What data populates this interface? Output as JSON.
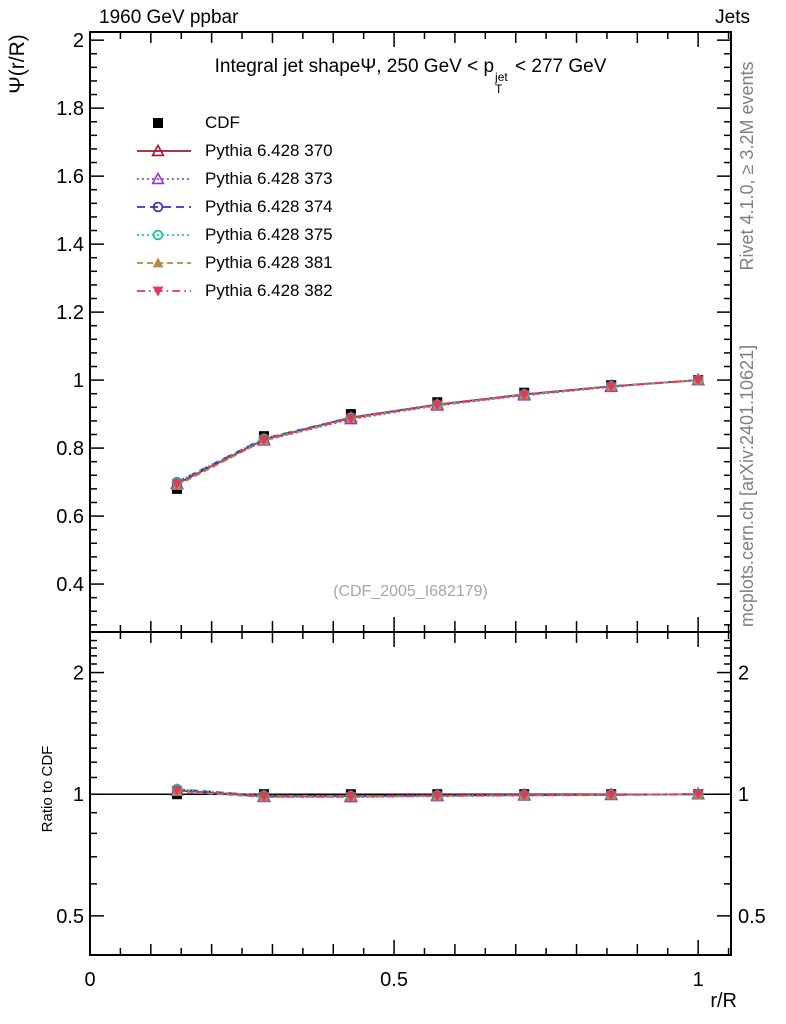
{
  "header": {
    "left": "1960 GeV ppbar",
    "right": "Jets"
  },
  "title": {
    "text1": "Integral jet shape",
    "psi": "Ψ",
    "text2": ", 250 GeV < p",
    "sup": "jet",
    "sub": "T",
    "text3": " < 277 GeV"
  },
  "watermark": "(CDF_2005_I682179)",
  "side_notes": {
    "top": "Rivet 4.1.0, ≥ 3.2M events",
    "bottom": "mcplots.cern.ch [arXiv:2401.10621]",
    "color": "#808080"
  },
  "axes": {
    "main_ylabel": "Ψ(r/R)",
    "ratio_ylabel": "Ratio to CDF",
    "xlabel": "r/R"
  },
  "chart_data": {
    "type": "line",
    "title": "Integral jet shape Ψ, 250 GeV < p_T^jet < 277 GeV",
    "xlabel": "r/R",
    "ylabel": "Ψ(r/R)",
    "ratio_ylabel": "Ratio to CDF",
    "legend_position": "top-left-inside",
    "grid": false,
    "x": [
      0.143,
      0.286,
      0.429,
      0.571,
      0.714,
      0.857,
      1.0
    ],
    "x_axis": {
      "min": 0,
      "max": 1.054,
      "labeled_ticks": [
        0,
        0.5,
        1
      ]
    },
    "main_axis": {
      "scale": "linear",
      "ymin": 0.259,
      "ymax": 2.024,
      "labeled_ticks": [
        0.4,
        0.6,
        0.8,
        1,
        1.2,
        1.4,
        1.6,
        1.8,
        2
      ]
    },
    "ratio_axis": {
      "scale": "log",
      "ymin": 0.4,
      "ymax": 2.52,
      "labeled_ticks": [
        0.5,
        1,
        2
      ],
      "reference_line": 1
    },
    "cdf_error": 0.013,
    "series": [
      {
        "name": "CDF",
        "color": "#000000",
        "marker": "square-filled",
        "line": "none",
        "values": [
          0.68,
          0.835,
          0.9,
          0.935,
          0.963,
          0.985,
          1.0
        ],
        "ratio": [
          1,
          1,
          1,
          1,
          1,
          1,
          1
        ]
      },
      {
        "name": "Pythia 6.428 370",
        "color": "#a01830",
        "marker": "triangle-open-up",
        "line": "solid",
        "values": [
          0.695,
          0.825,
          0.89,
          0.928,
          0.958,
          0.982,
          1.0
        ],
        "ratio": [
          1.022,
          0.988,
          0.989,
          0.993,
          0.995,
          0.997,
          1.0
        ]
      },
      {
        "name": "Pythia 6.428 373",
        "color": "#9933cc",
        "marker": "triangle-open-up",
        "line": "dotted",
        "values": [
          0.694,
          0.822,
          0.885,
          0.925,
          0.955,
          0.98,
          1.0
        ],
        "ratio": [
          1.021,
          0.984,
          0.983,
          0.989,
          0.992,
          0.995,
          1.0
        ]
      },
      {
        "name": "Pythia 6.428 374",
        "color": "#3333cc",
        "marker": "circle-open",
        "line": "dashed",
        "values": [
          0.7,
          0.828,
          0.89,
          0.928,
          0.958,
          0.982,
          1.0
        ],
        "ratio": [
          1.029,
          0.992,
          0.989,
          0.993,
          0.995,
          0.997,
          1.0
        ]
      },
      {
        "name": "Pythia 6.428 375",
        "color": "#00cc99",
        "marker": "circle-open",
        "line": "dotted",
        "values": [
          0.7,
          0.828,
          0.89,
          0.928,
          0.958,
          0.982,
          1.0
        ],
        "ratio": [
          1.029,
          0.992,
          0.989,
          0.993,
          0.995,
          0.997,
          1.0
        ]
      },
      {
        "name": "Pythia 6.428 381",
        "color": "#b5884d",
        "marker": "triangle-filled-up",
        "line": "dashed2",
        "values": [
          0.69,
          0.822,
          0.887,
          0.926,
          0.956,
          0.981,
          1.0
        ],
        "ratio": [
          1.015,
          0.984,
          0.986,
          0.99,
          0.993,
          0.996,
          1.0
        ]
      },
      {
        "name": "Pythia 6.428 382",
        "color": "#e8365a",
        "marker": "triangle-filled-down",
        "line": "dashdot",
        "values": [
          0.695,
          0.825,
          0.888,
          0.927,
          0.957,
          0.981,
          1.0
        ],
        "ratio": [
          1.022,
          0.988,
          0.987,
          0.991,
          0.994,
          0.996,
          1.0
        ]
      }
    ]
  }
}
